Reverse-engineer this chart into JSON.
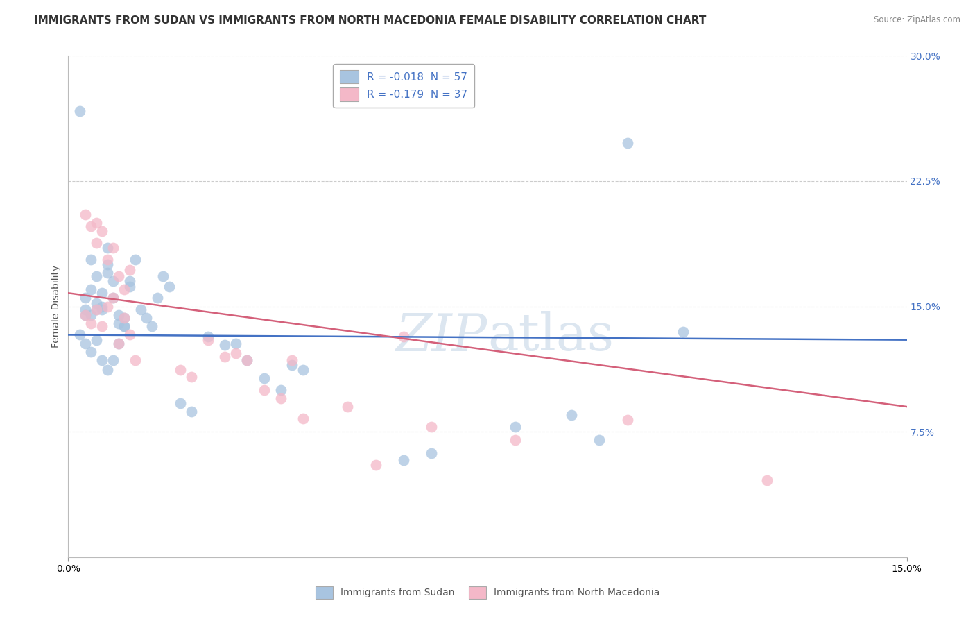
{
  "title": "IMMIGRANTS FROM SUDAN VS IMMIGRANTS FROM NORTH MACEDONIA FEMALE DISABILITY CORRELATION CHART",
  "source": "Source: ZipAtlas.com",
  "ylabel": "Female Disability",
  "xlim": [
    0,
    0.15
  ],
  "ylim": [
    0,
    0.3
  ],
  "yticks": [
    0.075,
    0.15,
    0.225,
    0.3
  ],
  "ytick_labels": [
    "7.5%",
    "15.0%",
    "22.5%",
    "30.0%"
  ],
  "xtick_labels": [
    "0.0%",
    "15.0%"
  ],
  "legend_r1": "R = -0.018  N = 57",
  "legend_r2": "R = -0.179  N = 37",
  "sudan_color": "#a8c4e0",
  "north_mac_color": "#f4b8c8",
  "sudan_line_color": "#4472c4",
  "north_mac_line_color": "#d4607a",
  "background_color": "#ffffff",
  "grid_color": "#cccccc",
  "title_fontsize": 11,
  "axis_label_fontsize": 10,
  "tick_fontsize": 10,
  "watermark_fontsize": 54,
  "watermark_color": "#dce6f0",
  "sudan_x": [
    0.002,
    0.003,
    0.003,
    0.003,
    0.004,
    0.004,
    0.004,
    0.005,
    0.005,
    0.005,
    0.006,
    0.006,
    0.006,
    0.007,
    0.007,
    0.007,
    0.008,
    0.008,
    0.009,
    0.009,
    0.01,
    0.01,
    0.011,
    0.012,
    0.013,
    0.014,
    0.015,
    0.016,
    0.017,
    0.018,
    0.002,
    0.003,
    0.004,
    0.005,
    0.006,
    0.007,
    0.008,
    0.009,
    0.01,
    0.011,
    0.02,
    0.022,
    0.025,
    0.028,
    0.03,
    0.032,
    0.035,
    0.038,
    0.04,
    0.042,
    0.1,
    0.06,
    0.065,
    0.08,
    0.09,
    0.095,
    0.11
  ],
  "sudan_y": [
    0.267,
    0.155,
    0.145,
    0.148,
    0.145,
    0.16,
    0.178,
    0.148,
    0.152,
    0.168,
    0.148,
    0.15,
    0.158,
    0.17,
    0.185,
    0.175,
    0.165,
    0.155,
    0.145,
    0.14,
    0.138,
    0.143,
    0.162,
    0.178,
    0.148,
    0.143,
    0.138,
    0.155,
    0.168,
    0.162,
    0.133,
    0.128,
    0.123,
    0.13,
    0.118,
    0.112,
    0.118,
    0.128,
    0.138,
    0.165,
    0.092,
    0.087,
    0.132,
    0.127,
    0.128,
    0.118,
    0.107,
    0.1,
    0.115,
    0.112,
    0.248,
    0.058,
    0.062,
    0.078,
    0.085,
    0.07,
    0.135
  ],
  "north_mac_x": [
    0.003,
    0.004,
    0.005,
    0.005,
    0.006,
    0.007,
    0.008,
    0.009,
    0.01,
    0.011,
    0.003,
    0.004,
    0.005,
    0.006,
    0.007,
    0.008,
    0.009,
    0.01,
    0.011,
    0.012,
    0.02,
    0.022,
    0.025,
    0.028,
    0.03,
    0.032,
    0.035,
    0.038,
    0.04,
    0.042,
    0.05,
    0.055,
    0.06,
    0.065,
    0.08,
    0.1,
    0.125
  ],
  "north_mac_y": [
    0.205,
    0.198,
    0.188,
    0.2,
    0.195,
    0.178,
    0.185,
    0.168,
    0.16,
    0.172,
    0.145,
    0.14,
    0.148,
    0.138,
    0.15,
    0.155,
    0.128,
    0.143,
    0.133,
    0.118,
    0.112,
    0.108,
    0.13,
    0.12,
    0.122,
    0.118,
    0.1,
    0.095,
    0.118,
    0.083,
    0.09,
    0.055,
    0.132,
    0.078,
    0.07,
    0.082,
    0.046
  ]
}
